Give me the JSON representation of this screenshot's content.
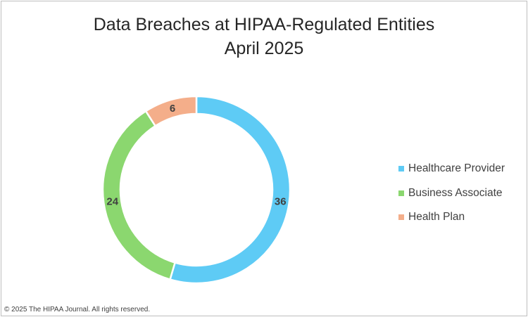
{
  "chart_data": {
    "type": "pie",
    "variant": "doughnut",
    "title": "Data Breaches at HIPAA-Regulated Entities",
    "subtitle": "April 2025",
    "categories": [
      "Healthcare Provider",
      "Business Associate",
      "Health Plan"
    ],
    "values": [
      36,
      24,
      6
    ],
    "colors": [
      "#5ECBF5",
      "#8BD76F",
      "#F4AE8A"
    ],
    "legend_position": "right",
    "data_labels": true
  },
  "footer": {
    "copyright": "© 2025 The HIPAA Journal. All rights reserved."
  }
}
